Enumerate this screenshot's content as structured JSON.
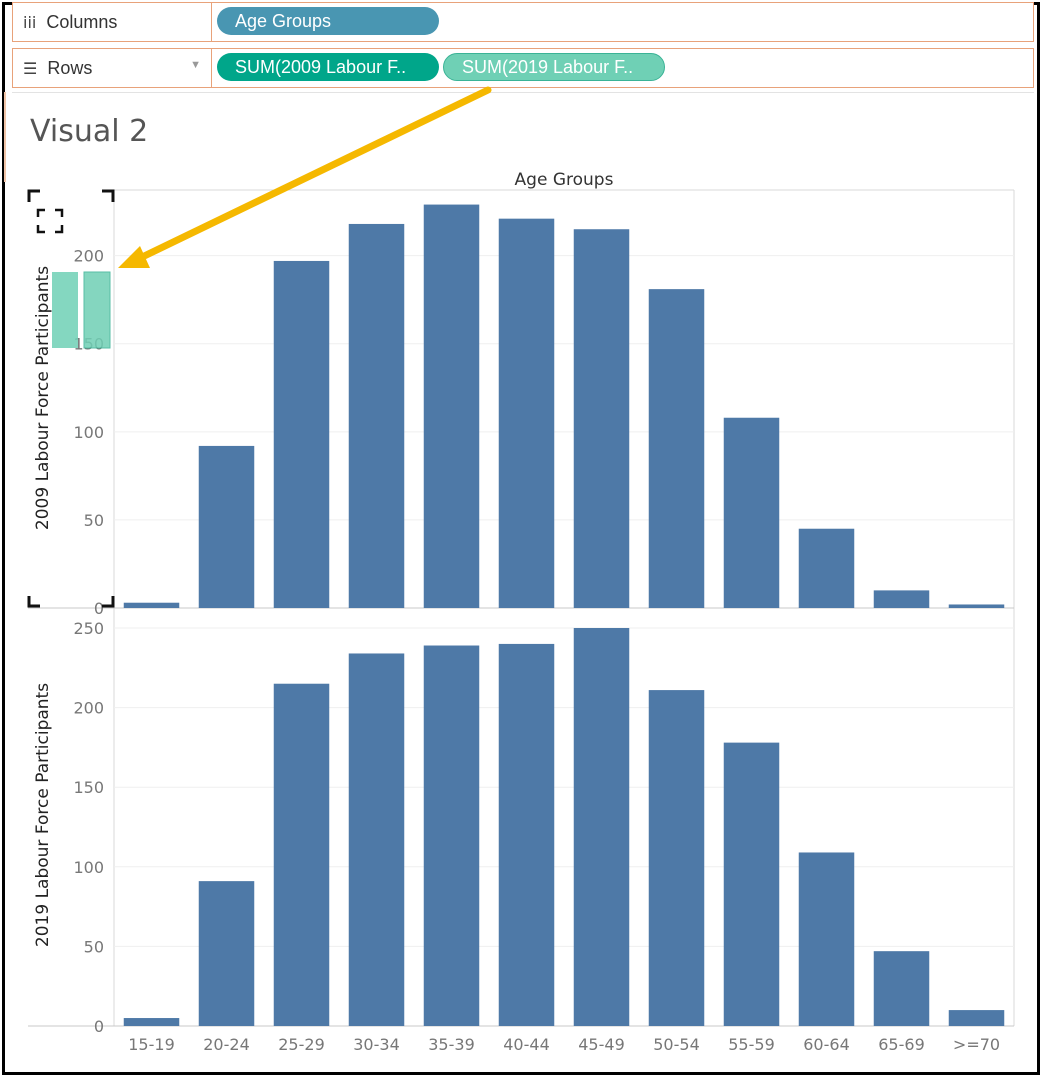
{
  "shelves": {
    "columns": {
      "icon": "columns-icon",
      "label": "Columns",
      "pills": [
        {
          "label": "Age Groups",
          "color": "#4996b2"
        }
      ]
    },
    "rows": {
      "icon": "rows-icon",
      "label": "Rows",
      "pills": [
        {
          "label": "SUM(2009 Labour F..",
          "color": "#00a68a"
        },
        {
          "label": "SUM(2019 Labour F..",
          "color": "#6fd0b5"
        }
      ]
    }
  },
  "sheet": {
    "title": "Visual 2"
  },
  "annotation": {
    "arrow_color": "#f5b800",
    "drop_target_color": "#6fd0b5"
  },
  "chart_data": {
    "type": "bar",
    "title": "Visual 2",
    "column_header": "Age Groups",
    "categories": [
      "15-19",
      "20-24",
      "25-29",
      "30-34",
      "35-39",
      "40-44",
      "45-49",
      "50-54",
      "55-59",
      "60-64",
      "65-69",
      ">=70"
    ],
    "bar_color": "#4e79a7",
    "panes": [
      {
        "name": "2009 Labour Force Participants",
        "ylabel": "2009 Labour Force Participants",
        "ylim": [
          0,
          235
        ],
        "yticks": [
          0,
          50,
          100,
          150,
          200
        ],
        "values": [
          3,
          92,
          197,
          218,
          229,
          221,
          215,
          181,
          108,
          45,
          10,
          2
        ]
      },
      {
        "name": "2019 Labour Force Participants",
        "ylabel": "2019 Labour Force Participants",
        "ylim": [
          0,
          250
        ],
        "yticks": [
          0,
          50,
          100,
          150,
          200,
          250
        ],
        "values": [
          5,
          91,
          215,
          234,
          239,
          240,
          250,
          211,
          178,
          109,
          47,
          10
        ]
      }
    ]
  }
}
